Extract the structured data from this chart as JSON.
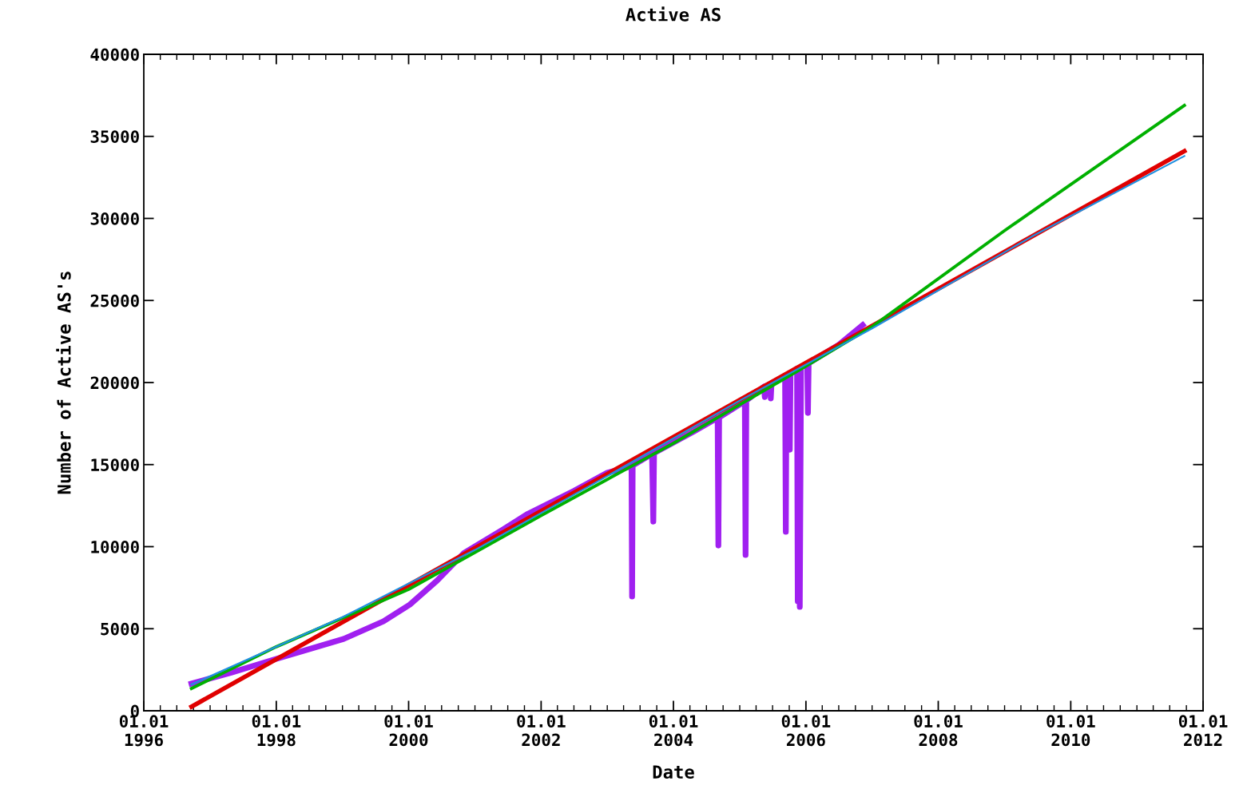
{
  "chart_data": {
    "type": "line",
    "title": "Active AS",
    "xlabel": "Date",
    "ylabel": "Number of Active AS's",
    "xlim": [
      "1996-01-01",
      "2012-01-01"
    ],
    "xticks": [
      {
        "value": "1996-01-01",
        "label": "01.01\n1996"
      },
      {
        "value": "1998-01-01",
        "label": "01.01\n1998"
      },
      {
        "value": "2000-01-01",
        "label": "01.01\n2000"
      },
      {
        "value": "2002-01-01",
        "label": "01.01\n2002"
      },
      {
        "value": "2004-01-01",
        "label": "01.01\n2004"
      },
      {
        "value": "2006-01-01",
        "label": "01.01\n2006"
      },
      {
        "value": "2008-01-01",
        "label": "01.01\n2008"
      },
      {
        "value": "2010-01-01",
        "label": "01.01\n2010"
      },
      {
        "value": "2012-01-01",
        "label": "01.01\n2012"
      }
    ],
    "ylim": [
      0,
      40000
    ],
    "yticks": [
      0,
      5000,
      10000,
      15000,
      20000,
      25000,
      30000,
      35000,
      40000
    ],
    "grid": false,
    "marker": "none",
    "line_style": "solid",
    "series": [
      {
        "color": "#a020f0",
        "x": [
          "1996-09-20",
          "1997-05-01",
          "1997-12-05",
          "1998-05-30",
          "1999-01-08",
          "1999-08-15",
          "2000-01-08",
          "2000-06-06",
          "2000-10-30",
          "2001-06-06",
          "2001-10-20",
          "2002-07-01",
          "2003-01-01",
          "2003-05-15",
          "2003-05-18",
          "2003-05-21",
          "2003-09-05",
          "2003-09-12",
          "2003-09-16",
          "2004-04-20",
          "2004-09-01",
          "2004-09-05",
          "2004-09-09",
          "2005-01-29",
          "2005-02-02",
          "2005-02-06",
          "2005-05-15",
          "2005-05-19",
          "2005-05-23",
          "2005-06-17",
          "2005-06-21",
          "2005-06-25",
          "2005-09-08",
          "2005-09-12",
          "2005-09-16",
          "2005-09-30",
          "2005-10-04",
          "2005-10-08",
          "2005-11-13",
          "2005-11-17",
          "2005-11-24",
          "2005-11-28",
          "2005-12-05",
          "2006-01-08",
          "2006-01-12",
          "2006-01-16",
          "2006-07-01",
          "2006-11-10"
        ],
        "values": [
          1650,
          2340,
          3070,
          3650,
          4380,
          5450,
          6470,
          7930,
          9590,
          11050,
          12000,
          13400,
          14500,
          14900,
          6960,
          14950,
          15650,
          11530,
          15700,
          17000,
          17850,
          10070,
          17880,
          18860,
          9490,
          18900,
          19750,
          19120,
          19780,
          19900,
          19030,
          19950,
          20400,
          10900,
          20450,
          20550,
          15910,
          20580,
          20850,
          6670,
          20880,
          6330,
          20920,
          21150,
          18150,
          21180,
          22300,
          23500
        ]
      },
      {
        "color": "#e00000",
        "x": [
          "1996-09-20",
          "2011-09-20"
        ],
        "values": [
          250,
          34100
        ]
      },
      {
        "color": "#00b000",
        "x": [
          "1996-09-20",
          "1998-01-01",
          "2000-01-01",
          "2002-01-01",
          "2004-01-01",
          "2006-01-01",
          "2007-01-01",
          "2009-01-01",
          "2011-09-20"
        ],
        "values": [
          1360,
          3900,
          7400,
          11900,
          16300,
          21000,
          23400,
          29260,
          36890
        ]
      },
      {
        "color": "#2090e0",
        "x": [
          "1996-09-20",
          "1999-01-01",
          "2001-01-01",
          "2003-01-01",
          "2005-01-01",
          "2007-01-01",
          "2009-06-01",
          "2011-09-20"
        ],
        "values": [
          1600,
          5700,
          9800,
          14300,
          18900,
          23300,
          28900,
          33800
        ]
      }
    ]
  }
}
